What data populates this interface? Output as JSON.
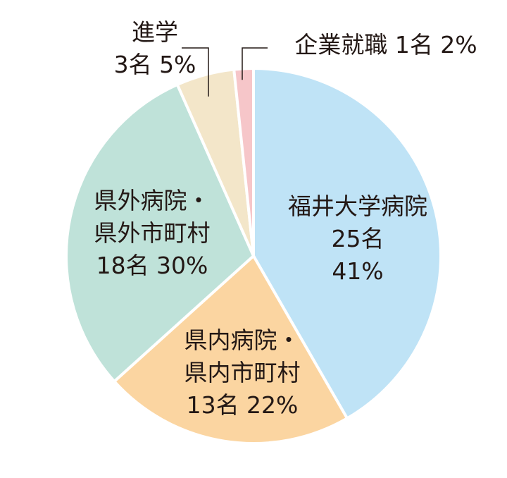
{
  "chart_data": {
    "type": "pie",
    "start_angle_deg": 0,
    "direction": "clockwise",
    "slices": [
      {
        "label_lines": [
          "福井大学病院",
          "25名",
          "41%"
        ],
        "count": 25,
        "percent": 41,
        "color": "#bfe3f6"
      },
      {
        "label_lines": [
          "県内病院・",
          "県内市町村",
          "13名 22%"
        ],
        "count": 13,
        "percent": 22,
        "color": "#fbd5a1"
      },
      {
        "label_lines": [
          "県外病院・",
          "県外市町村",
          "18名 30%"
        ],
        "count": 18,
        "percent": 30,
        "color": "#bfe2d9"
      },
      {
        "label_lines": [
          "進学",
          "3名 5%"
        ],
        "count": 3,
        "percent": 5,
        "color": "#f3e6c9"
      },
      {
        "label_lines": [
          "企業就職 1名 2%"
        ],
        "count": 1,
        "percent": 2,
        "color": "#f6c6c9"
      }
    ]
  }
}
